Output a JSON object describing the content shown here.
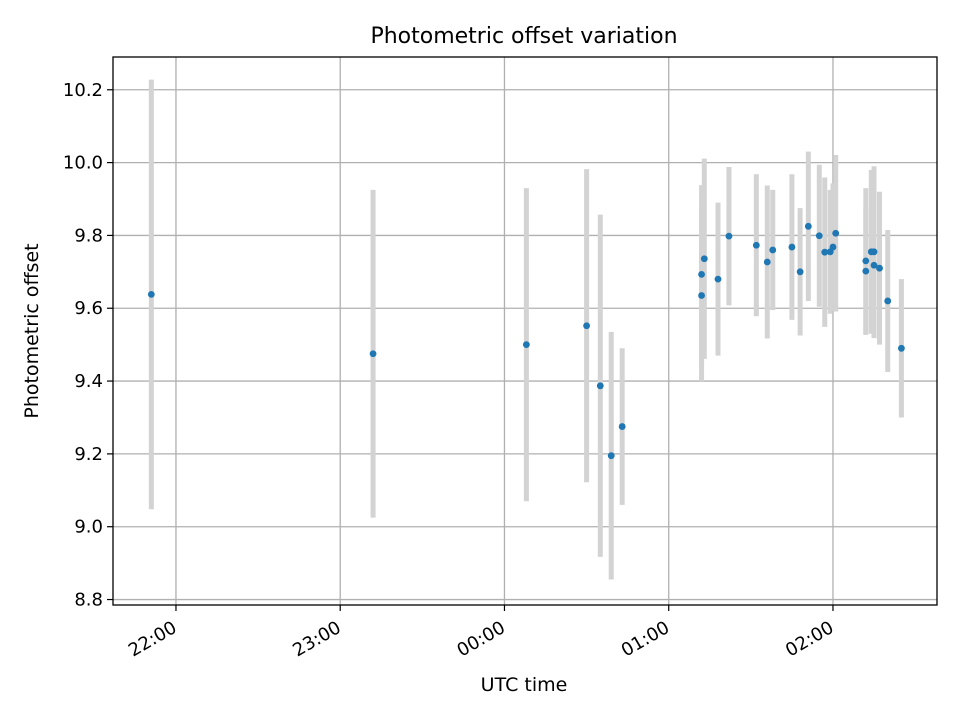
{
  "chart_data": {
    "type": "scatter",
    "title": "Photometric offset variation",
    "xlabel": "UTC time",
    "ylabel": "Photometric offset",
    "x_ticks": [
      "22:00",
      "23:00",
      "00:00",
      "01:00",
      "02:00"
    ],
    "x_tick_positions": [
      "22:00",
      "23:00",
      "24:00",
      "25:00",
      "26:00"
    ],
    "y_ticks": [
      "8.8",
      "9.0",
      "9.2",
      "9.4",
      "9.6",
      "9.8",
      "10.0",
      "10.2"
    ],
    "xlim": [
      "21:37",
      "26:38"
    ],
    "ylim": [
      8.785,
      10.29
    ],
    "grid": true,
    "colors": {
      "point": "#1f77b4",
      "errorbar": "#d3d3d3",
      "grid": "#b0b0b0"
    },
    "points": [
      {
        "t": "21:51",
        "y": 9.638,
        "err": 0.59
      },
      {
        "t": "23:12",
        "y": 9.475,
        "err": 0.45
      },
      {
        "t": "24:08",
        "y": 9.5,
        "err": 0.43
      },
      {
        "t": "24:30",
        "y": 9.552,
        "err": 0.43
      },
      {
        "t": "24:35",
        "y": 9.387,
        "err": 0.47
      },
      {
        "t": "24:39",
        "y": 9.195,
        "err": 0.34
      },
      {
        "t": "24:43",
        "y": 9.275,
        "err": 0.215
      },
      {
        "t": "25:12",
        "y": 9.635,
        "err": 0.235
      },
      {
        "t": "25:12",
        "y": 9.693,
        "err": 0.245
      },
      {
        "t": "25:13",
        "y": 9.736,
        "err": 0.275
      },
      {
        "t": "25:18",
        "y": 9.68,
        "err": 0.21
      },
      {
        "t": "25:22",
        "y": 9.798,
        "err": 0.19
      },
      {
        "t": "25:32",
        "y": 9.773,
        "err": 0.195
      },
      {
        "t": "25:36",
        "y": 9.727,
        "err": 0.21
      },
      {
        "t": "25:38",
        "y": 9.76,
        "err": 0.165
      },
      {
        "t": "25:45",
        "y": 9.768,
        "err": 0.2
      },
      {
        "t": "25:48",
        "y": 9.7,
        "err": 0.175
      },
      {
        "t": "25:51",
        "y": 9.825,
        "err": 0.205
      },
      {
        "t": "25:55",
        "y": 9.799,
        "err": 0.195
      },
      {
        "t": "25:57",
        "y": 9.754,
        "err": 0.205
      },
      {
        "t": "25:59",
        "y": 9.755,
        "err": 0.17
      },
      {
        "t": "26:00",
        "y": 9.768,
        "err": 0.175
      },
      {
        "t": "26:01",
        "y": 9.806,
        "err": 0.215
      },
      {
        "t": "26:12",
        "y": 9.702,
        "err": 0.175
      },
      {
        "t": "26:12",
        "y": 9.73,
        "err": 0.2
      },
      {
        "t": "26:14",
        "y": 9.755,
        "err": 0.225
      },
      {
        "t": "26:15",
        "y": 9.755,
        "err": 0.235
      },
      {
        "t": "26:15",
        "y": 9.718,
        "err": 0.2
      },
      {
        "t": "26:17",
        "y": 9.71,
        "err": 0.21
      },
      {
        "t": "26:20",
        "y": 9.62,
        "err": 0.195
      },
      {
        "t": "26:25",
        "y": 9.49,
        "err": 0.19
      }
    ]
  }
}
